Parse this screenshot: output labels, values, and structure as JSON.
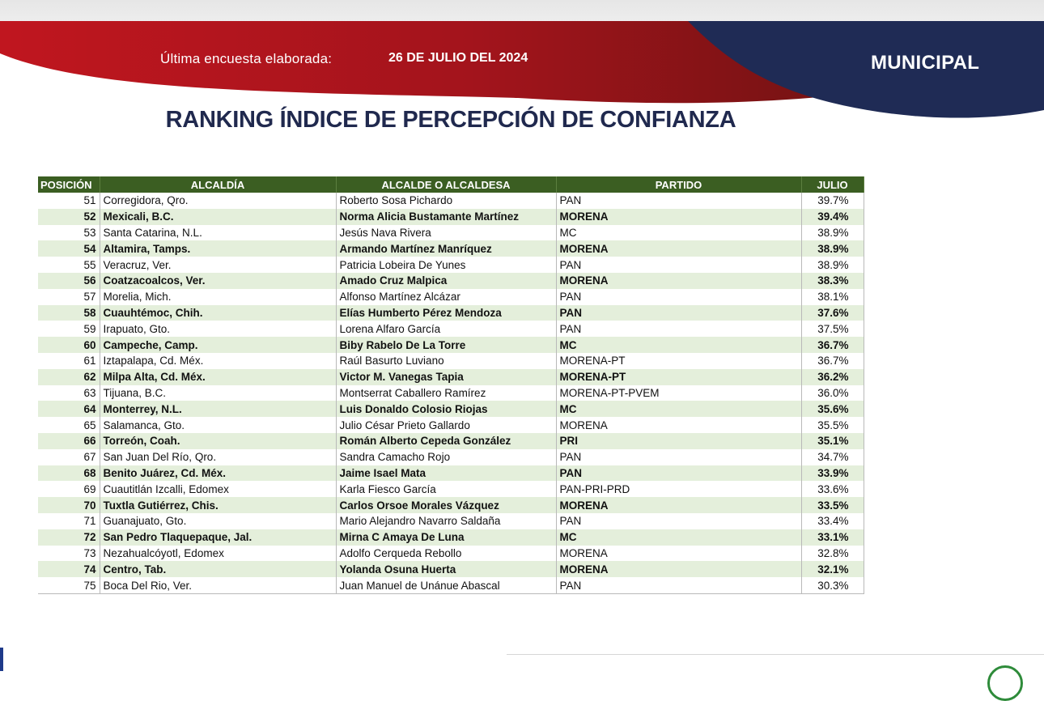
{
  "header": {
    "date_label": "Última encuesta elaborada:",
    "date_value": "26 DE JULIO DEL 2024",
    "section": "MUNICIPAL",
    "colors": {
      "red": "#b3151e",
      "dark_red": "#6b1410",
      "navy": "#1f2b55"
    }
  },
  "title": "RANKING ÍNDICE DE PERCEPCIÓN DE CONFIANZA",
  "table": {
    "columns": [
      "POSICIÓN",
      "ALCALDÍA",
      "ALCALDE O ALCALDESA",
      "PARTIDO",
      "JULIO"
    ],
    "header_color": "#3b5e22",
    "alt_row_color": "#e4efdb",
    "rows": [
      {
        "pos": "51",
        "city": "Corregidora, Qro.",
        "mayor": "Roberto Sosa Pichardo",
        "party": "PAN",
        "julio": "39.7%"
      },
      {
        "pos": "52",
        "city": "Mexicali, B.C.",
        "mayor": "Norma Alicia Bustamante Martínez",
        "party": "MORENA",
        "julio": "39.4%"
      },
      {
        "pos": "53",
        "city": "Santa Catarina, N.L.",
        "mayor": "Jesús Nava Rivera",
        "party": "MC",
        "julio": "38.9%"
      },
      {
        "pos": "54",
        "city": "Altamira, Tamps.",
        "mayor": "Armando Martínez Manríquez",
        "party": "MORENA",
        "julio": "38.9%"
      },
      {
        "pos": "55",
        "city": "Veracruz, Ver.",
        "mayor": "Patricia Lobeira De Yunes",
        "party": "PAN",
        "julio": "38.9%"
      },
      {
        "pos": "56",
        "city": "Coatzacoalcos, Ver.",
        "mayor": "Amado Cruz Malpica",
        "party": "MORENA",
        "julio": "38.3%"
      },
      {
        "pos": "57",
        "city": "Morelia, Mich.",
        "mayor": "Alfonso Martínez Alcázar",
        "party": "PAN",
        "julio": "38.1%"
      },
      {
        "pos": "58",
        "city": "Cuauhtémoc, Chih.",
        "mayor": "Elías Humberto Pérez Mendoza",
        "party": "PAN",
        "julio": "37.6%"
      },
      {
        "pos": "59",
        "city": "Irapuato, Gto.",
        "mayor": "Lorena Alfaro García",
        "party": "PAN",
        "julio": "37.5%"
      },
      {
        "pos": "60",
        "city": "Campeche, Camp.",
        "mayor": "Biby Rabelo De La Torre",
        "party": "MC",
        "julio": "36.7%"
      },
      {
        "pos": "61",
        "city": "Iztapalapa, Cd. Méx.",
        "mayor": "Raúl Basurto Luviano",
        "party": "MORENA-PT",
        "julio": "36.7%"
      },
      {
        "pos": "62",
        "city": "Milpa Alta, Cd. Méx.",
        "mayor": "Victor M. Vanegas Tapia",
        "party": "MORENA-PT",
        "julio": "36.2%"
      },
      {
        "pos": "63",
        "city": "Tijuana, B.C.",
        "mayor": "Montserrat Caballero Ramírez",
        "party": "MORENA-PT-PVEM",
        "julio": "36.0%"
      },
      {
        "pos": "64",
        "city": "Monterrey, N.L.",
        "mayor": "Luis Donaldo Colosio Riojas",
        "party": "MC",
        "julio": "35.6%"
      },
      {
        "pos": "65",
        "city": "Salamanca, Gto.",
        "mayor": "Julio César Prieto Gallardo",
        "party": "MORENA",
        "julio": "35.5%"
      },
      {
        "pos": "66",
        "city": "Torreón, Coah.",
        "mayor": "Román Alberto Cepeda González",
        "party": "PRI",
        "julio": "35.1%"
      },
      {
        "pos": "67",
        "city": "San Juan Del Río, Qro.",
        "mayor": "Sandra Camacho Rojo",
        "party": "PAN",
        "julio": "34.7%"
      },
      {
        "pos": "68",
        "city": "Benito Juárez, Cd. Méx.",
        "mayor": "Jaime Isael Mata",
        "party": "PAN",
        "julio": "33.9%"
      },
      {
        "pos": "69",
        "city": "Cuautitlán Izcalli, Edomex",
        "mayor": "Karla Fiesco García",
        "party": "PAN-PRI-PRD",
        "julio": "33.6%"
      },
      {
        "pos": "70",
        "city": "Tuxtla Gutiérrez, Chis.",
        "mayor": "Carlos Orsoe Morales Vázquez",
        "party": "MORENA",
        "julio": "33.5%"
      },
      {
        "pos": "71",
        "city": "Guanajuato, Gto.",
        "mayor": "Mario Alejandro Navarro Saldaña",
        "party": "PAN",
        "julio": "33.4%"
      },
      {
        "pos": "72",
        "city": "San Pedro Tlaquepaque, Jal.",
        "mayor": "Mirna C Amaya De Luna",
        "party": "MC",
        "julio": "33.1%"
      },
      {
        "pos": "73",
        "city": "Nezahualcóyotl, Edomex",
        "mayor": "Adolfo Cerqueda Rebollo",
        "party": "MORENA",
        "julio": "32.8%"
      },
      {
        "pos": "74",
        "city": "Centro, Tab.",
        "mayor": "Yolanda Osuna Huerta",
        "party": "MORENA",
        "julio": "32.1%"
      },
      {
        "pos": "75",
        "city": "Boca Del Rio, Ver.",
        "mayor": "Juan Manuel de Unánue Abascal",
        "party": "PAN",
        "julio": "30.3%"
      }
    ]
  }
}
